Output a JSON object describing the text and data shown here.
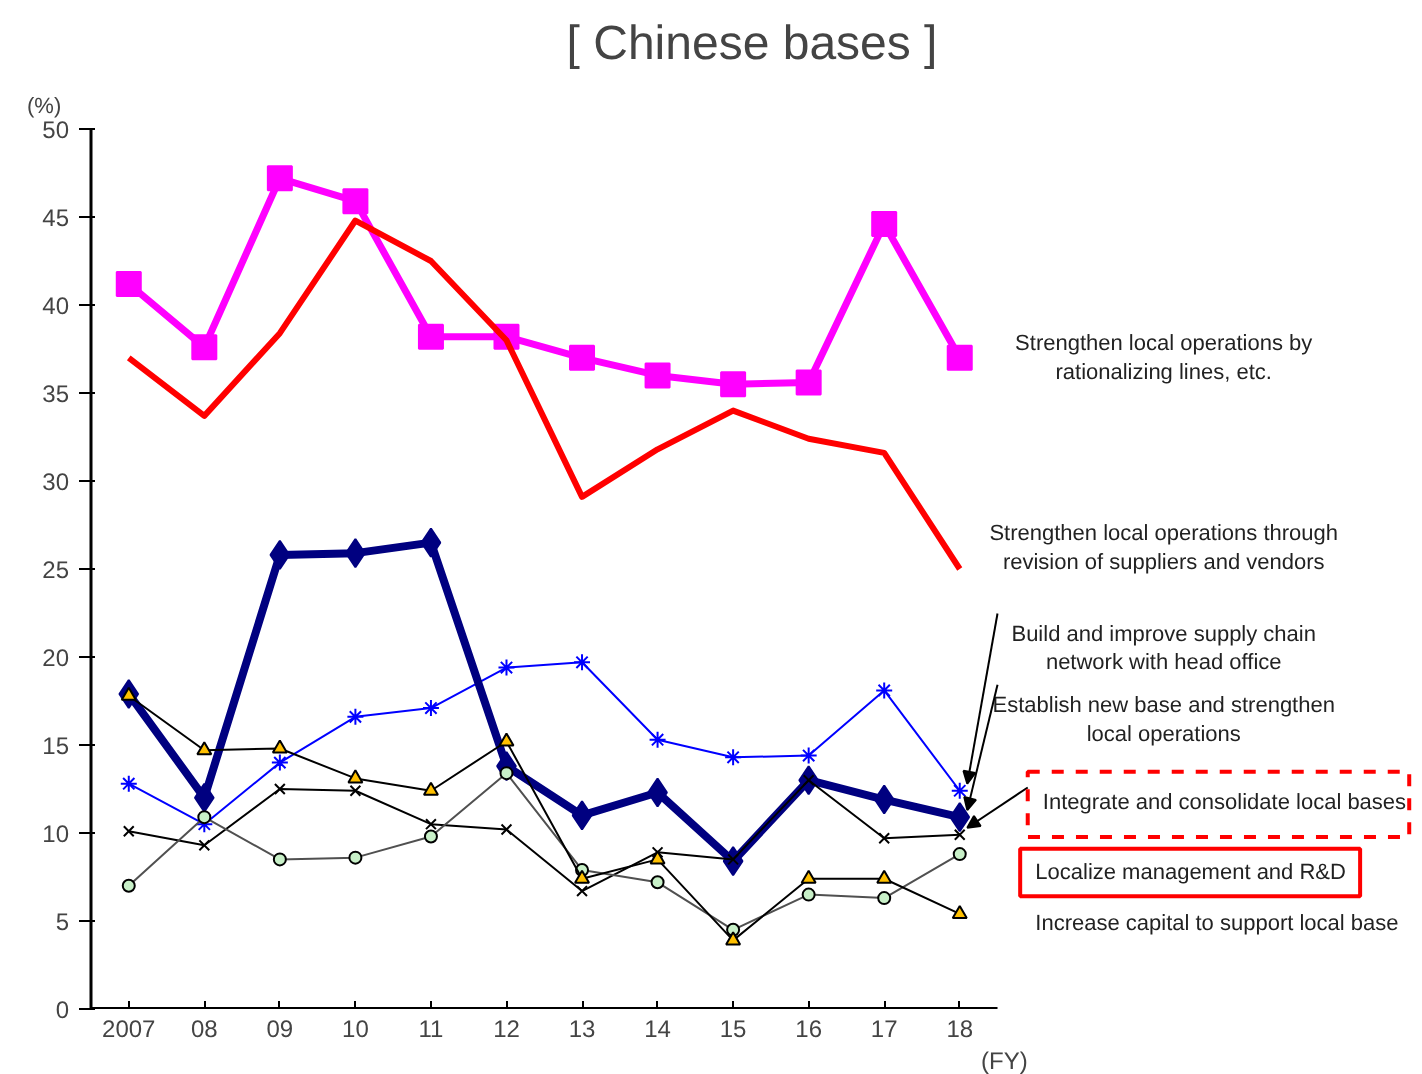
{
  "chart_data": {
    "type": "line",
    "title": "[ Chinese bases ]",
    "xlabel": "(FY)",
    "ylabel": "(%)",
    "x": [
      2007,
      2008,
      2009,
      2010,
      2011,
      2012,
      2013,
      2014,
      2015,
      2016,
      2017,
      2018
    ],
    "xlim": [
      2006.5,
      2018.5
    ],
    "xticks": [
      2007,
      {
        "value": 2008,
        "label": "08"
      },
      {
        "value": 2009,
        "label": "09"
      },
      {
        "value": 2010,
        "label": "10"
      },
      {
        "value": 2011,
        "label": "11"
      },
      {
        "value": 2012,
        "label": "12"
      },
      {
        "value": 2013,
        "label": "13"
      },
      {
        "value": 2014,
        "label": "14"
      },
      {
        "value": 2015,
        "label": "15"
      },
      {
        "value": 2016,
        "label": "16"
      },
      {
        "value": 2017,
        "label": "17"
      },
      {
        "value": 2018,
        "label": "18"
      }
    ],
    "ylim": [
      0,
      50
    ],
    "yticks": [
      0,
      5,
      10,
      15,
      20,
      25,
      30,
      35,
      40,
      45,
      50
    ],
    "grid": false,
    "line_style": "solid",
    "series": [
      {
        "name": "Strengthen local operations by rationalizing lines, etc.",
        "color": "#ff00ff",
        "marker": "square",
        "values": [
          41.2,
          37.6,
          47.2,
          45.9,
          38.2,
          38.2,
          37.0,
          36.0,
          35.5,
          35.6,
          44.6,
          37.0
        ]
      },
      {
        "name": "Strengthen local operations through revision of suppliers and vendors",
        "color": "#ff0000",
        "marker": "none",
        "values": [
          37.0,
          33.7,
          38.4,
          44.8,
          42.5,
          38.0,
          29.1,
          31.8,
          34.0,
          32.4,
          31.6,
          25.0
        ]
      },
      {
        "name": "Build and improve supply chain network with head office",
        "color": "#0000ff",
        "marker": "cross",
        "values": [
          12.8,
          10.5,
          14.0,
          16.6,
          17.1,
          19.4,
          19.7,
          15.3,
          14.3,
          14.4,
          18.1,
          12.4
        ]
      },
      {
        "name": "Establish new base and strengthen local operations",
        "color": "#000080",
        "marker": "diamond",
        "values": [
          17.9,
          12.0,
          25.8,
          25.9,
          26.5,
          13.8,
          11.0,
          12.3,
          8.4,
          13.0,
          11.9,
          10.9
        ]
      },
      {
        "name": "Integrate and consolidate local bases",
        "color": "#000000",
        "marker": "cross",
        "values": [
          10.1,
          9.3,
          12.5,
          12.4,
          10.5,
          10.2,
          6.7,
          8.9,
          8.5,
          13.0,
          9.7,
          9.9
        ]
      },
      {
        "name": "Localize management and R&D",
        "color": "#c8f0c8",
        "marker": "circle",
        "values": [
          7.0,
          10.9,
          8.5,
          8.6,
          9.8,
          13.4,
          7.9,
          7.2,
          4.5,
          6.5,
          6.3,
          8.8
        ]
      },
      {
        "name": "Increase capital to support local base",
        "color": "#ffc000",
        "marker": "triangle",
        "values": [
          17.8,
          14.7,
          14.8,
          13.1,
          12.4,
          15.2,
          7.4,
          8.5,
          3.9,
          7.4,
          7.4,
          5.4
        ]
      }
    ]
  }
}
